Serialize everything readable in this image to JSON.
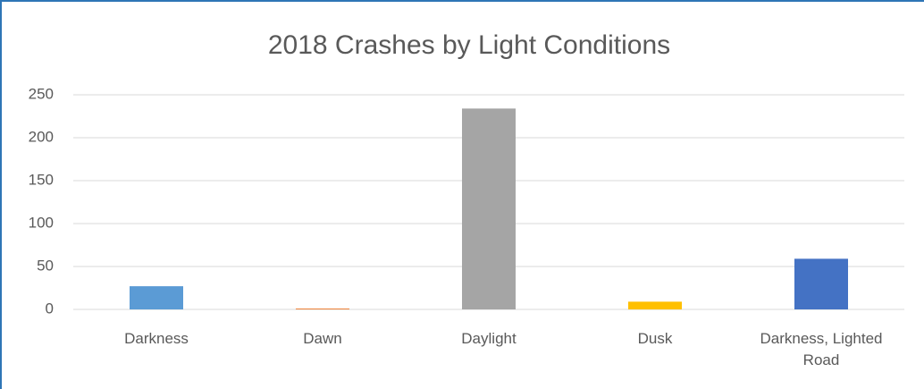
{
  "chart_data": {
    "type": "bar",
    "title": "2018 Crashes by Light Conditions",
    "categories": [
      "Darkness",
      "Dawn",
      "Daylight",
      "Dusk",
      "Darkness, Lighted Road"
    ],
    "values": [
      27,
      1,
      234,
      9,
      59
    ],
    "colors": [
      "#5b9bd5",
      "#ed7d31",
      "#a5a5a5",
      "#ffc000",
      "#4472c4"
    ],
    "ylim": [
      0,
      250
    ],
    "yticks": [
      0,
      50,
      100,
      150,
      200,
      250
    ],
    "grid": true
  }
}
